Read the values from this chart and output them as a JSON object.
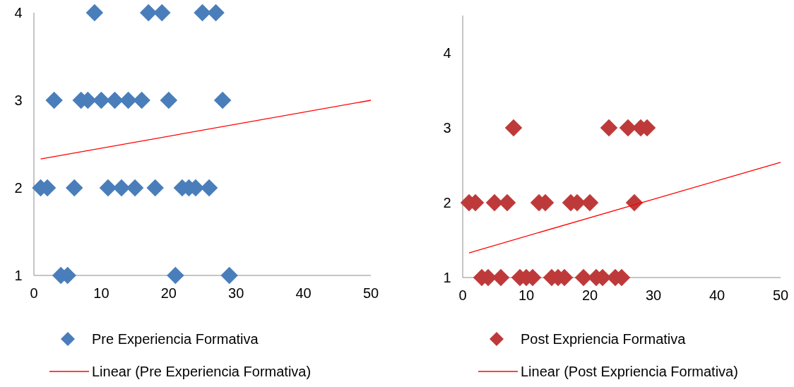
{
  "chart_data": [
    {
      "type": "scatter",
      "xlim": [
        0,
        50
      ],
      "xticks": [
        0,
        10,
        20,
        30,
        40,
        50
      ],
      "ylim": [
        1,
        4
      ],
      "yticks": [
        1,
        2,
        3,
        4
      ],
      "legend": "bottom",
      "grid": false,
      "series": [
        {
          "name": "Pre Experiencia Formativa",
          "marker": "diamond",
          "color": "#4a7ebb",
          "x": [
            9,
            17,
            19,
            25,
            27,
            3,
            7,
            8,
            10,
            12,
            14,
            16,
            20,
            28,
            1,
            2,
            6,
            11,
            13,
            15,
            18,
            22,
            23,
            24,
            26,
            4,
            5,
            21,
            29
          ],
          "values": [
            4,
            4,
            4,
            4,
            4,
            3,
            3,
            3,
            3,
            3,
            3,
            3,
            3,
            3,
            2,
            2,
            2,
            2,
            2,
            2,
            2,
            2,
            2,
            2,
            2,
            1,
            1,
            1,
            1
          ]
        },
        {
          "name": "Linear (Pre Experiencia Formativa)",
          "type": "line",
          "color": "#ff0000",
          "x": [
            1,
            50
          ],
          "values": [
            2.33,
            3.0
          ]
        }
      ]
    },
    {
      "type": "scatter",
      "xlim": [
        0,
        50
      ],
      "xticks": [
        0,
        10,
        20,
        30,
        40,
        50
      ],
      "ylim": [
        1,
        4.5
      ],
      "yticks": [
        1,
        2,
        3,
        4
      ],
      "legend": "bottom",
      "grid": false,
      "series": [
        {
          "name": "Post Expriencia Formativa",
          "marker": "diamond",
          "color": "#be3a3a",
          "x": [
            8,
            23,
            26,
            28,
            29,
            1,
            2,
            5,
            7,
            12,
            13,
            17,
            18,
            20,
            27,
            3,
            4,
            6,
            9,
            10,
            11,
            14,
            15,
            16,
            19,
            21,
            22,
            24,
            25
          ],
          "values": [
            3,
            3,
            3,
            3,
            3,
            2,
            2,
            2,
            2,
            2,
            2,
            2,
            2,
            2,
            2,
            1,
            1,
            1,
            1,
            1,
            1,
            1,
            1,
            1,
            1,
            1,
            1,
            1,
            1
          ]
        },
        {
          "name": "Linear (Post Expriencia Formativa)",
          "type": "line",
          "color": "#ff0000",
          "x": [
            1,
            50
          ],
          "values": [
            1.33,
            2.54
          ]
        }
      ]
    }
  ]
}
